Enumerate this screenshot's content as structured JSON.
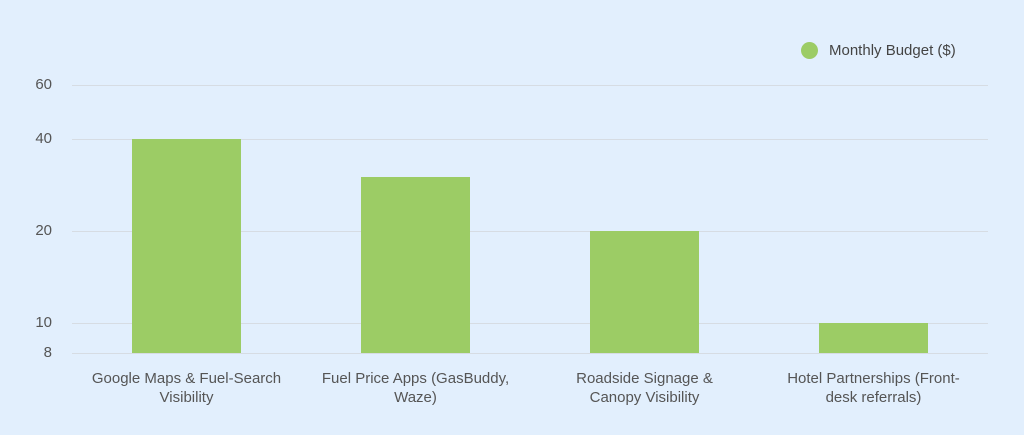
{
  "chart_data": {
    "type": "bar",
    "title": "",
    "xlabel": "",
    "ylabel": "",
    "yscale": "log",
    "ylim": [
      8,
      60
    ],
    "yticks": [
      8,
      10,
      20,
      40,
      60
    ],
    "grid": true,
    "legend_position": "top-right",
    "categories": [
      "Google Maps & Fuel-Search Visibility",
      "Fuel Price Apps (GasBuddy, Waze)",
      "Roadside Signage & Canopy Visibility",
      "Hotel Partnerships (Front-desk referrals)"
    ],
    "category_lines": [
      [
        "Google Maps & Fuel-Search",
        "Visibility"
      ],
      [
        "Fuel Price Apps (GasBuddy,",
        "Waze)"
      ],
      [
        "Roadside Signage &",
        "Canopy Visibility"
      ],
      [
        "Hotel Partnerships (Front-",
        "desk referrals)"
      ]
    ],
    "series": [
      {
        "name": "Monthly Budget ($)",
        "values": [
          40,
          30,
          20,
          10
        ],
        "color": "#9ccc65"
      }
    ]
  },
  "legend": {
    "label": "Monthly Budget ($)",
    "color": "#9ccc65"
  }
}
